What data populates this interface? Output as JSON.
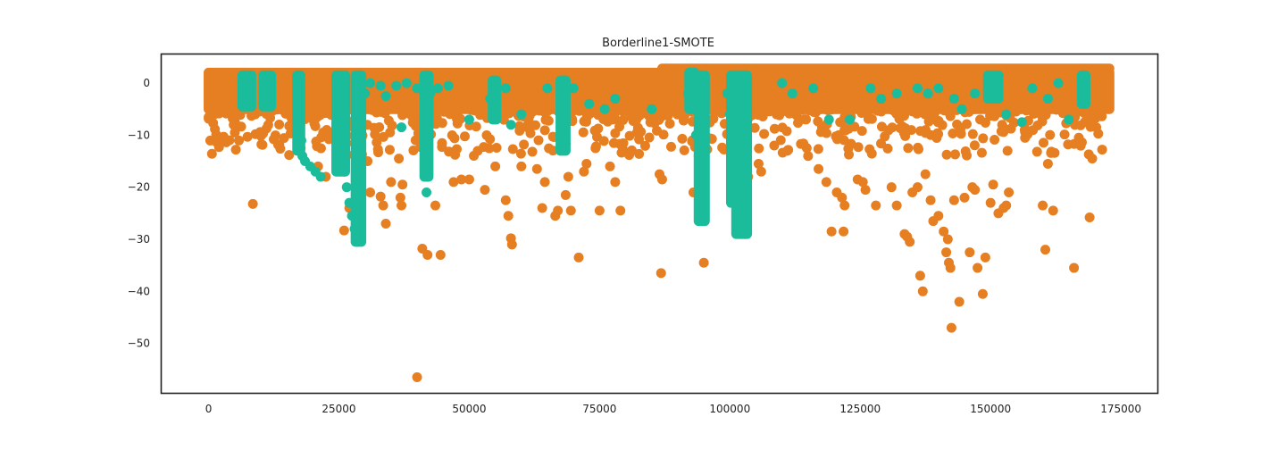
{
  "chart_data": {
    "type": "scatter",
    "title": "Borderline1-SMOTE",
    "xlabel": "",
    "ylabel": "",
    "xlim": [
      -9000,
      182000
    ],
    "ylim": [
      -59.5,
      5.5
    ],
    "x_ticks": [
      0,
      25000,
      50000,
      75000,
      100000,
      125000,
      150000,
      175000
    ],
    "x_tick_labels": [
      "0",
      "25000",
      "50000",
      "75000",
      "100000",
      "125000",
      "150000",
      "175000"
    ],
    "y_ticks": [
      0,
      -10,
      -20,
      -30,
      -40,
      -50
    ],
    "y_tick_labels": [
      "0",
      "−10",
      "−20",
      "−30",
      "−40",
      "−50"
    ],
    "grid": false,
    "legend": "none",
    "colors": {
      "majority": "#e67e22",
      "minority": "#1abc9c",
      "frame": "#222222"
    },
    "series": [
      {
        "color": "#e67e22",
        "band": {
          "x_start": 0,
          "x_end": 172800,
          "y_top": 2,
          "y_bottom": -5
        },
        "points": [
          [
            1500,
            -11.3
          ],
          [
            2000,
            -12.3
          ],
          [
            2500,
            -11
          ],
          [
            8500,
            -23.2
          ],
          [
            9000,
            -9.8
          ],
          [
            10000,
            -9.5
          ],
          [
            12500,
            -10.8
          ],
          [
            21000,
            -16
          ],
          [
            22500,
            -18
          ],
          [
            26000,
            -28.3
          ],
          [
            27000,
            -24
          ],
          [
            30500,
            -15
          ],
          [
            31000,
            -21
          ],
          [
            33000,
            -21.8
          ],
          [
            33500,
            -23.5
          ],
          [
            34000,
            -27
          ],
          [
            35000,
            -19
          ],
          [
            36500,
            -14.5
          ],
          [
            36800,
            -22
          ],
          [
            37000,
            -23.5
          ],
          [
            37200,
            -19.5
          ],
          [
            40000,
            -56.5
          ],
          [
            41000,
            -31.8
          ],
          [
            42000,
            -33
          ],
          [
            43500,
            -23.5
          ],
          [
            44500,
            -33
          ],
          [
            47000,
            -19
          ],
          [
            48500,
            -18.5
          ],
          [
            50000,
            -18.5
          ],
          [
            53000,
            -20.5
          ],
          [
            55000,
            -16
          ],
          [
            57000,
            -22.5
          ],
          [
            57500,
            -25.5
          ],
          [
            58000,
            -29.8
          ],
          [
            58200,
            -31
          ],
          [
            60000,
            -16
          ],
          [
            63000,
            -16.5
          ],
          [
            64000,
            -24
          ],
          [
            64500,
            -19
          ],
          [
            66500,
            -25.5
          ],
          [
            67000,
            -24.5
          ],
          [
            68500,
            -21.5
          ],
          [
            69000,
            -18
          ],
          [
            69500,
            -24.5
          ],
          [
            71000,
            -33.5
          ],
          [
            72000,
            -17
          ],
          [
            72500,
            -15.5
          ],
          [
            75000,
            -24.5
          ],
          [
            77000,
            -16
          ],
          [
            78000,
            -19
          ],
          [
            79000,
            -24.5
          ],
          [
            86500,
            -17.5
          ],
          [
            86800,
            -36.5
          ],
          [
            87000,
            -18.5
          ],
          [
            93000,
            -21
          ],
          [
            95000,
            -34.5
          ],
          [
            103500,
            -18
          ],
          [
            105500,
            -15.5
          ],
          [
            106000,
            -17
          ],
          [
            108500,
            -12
          ],
          [
            111000,
            -13
          ],
          [
            115000,
            -14
          ],
          [
            117000,
            -16.5
          ],
          [
            118500,
            -19
          ],
          [
            119500,
            -28.5
          ],
          [
            120500,
            -21
          ],
          [
            121500,
            -22
          ],
          [
            121800,
            -28.5
          ],
          [
            122000,
            -23.5
          ],
          [
            124500,
            -18.5
          ],
          [
            125500,
            -19
          ],
          [
            126000,
            -20.5
          ],
          [
            128000,
            -23.5
          ],
          [
            131000,
            -20
          ],
          [
            132000,
            -23.5
          ],
          [
            133500,
            -29
          ],
          [
            134000,
            -29.5
          ],
          [
            134500,
            -30.5
          ],
          [
            135000,
            -21
          ],
          [
            136000,
            -20
          ],
          [
            136500,
            -37
          ],
          [
            137000,
            -40
          ],
          [
            137500,
            -17.5
          ],
          [
            138500,
            -22.5
          ],
          [
            139000,
            -26.5
          ],
          [
            140000,
            -25.5
          ],
          [
            141000,
            -28.5
          ],
          [
            141500,
            -32.5
          ],
          [
            141800,
            -30
          ],
          [
            142000,
            -34.5
          ],
          [
            142300,
            -35.5
          ],
          [
            142500,
            -47
          ],
          [
            143000,
            -22.5
          ],
          [
            144000,
            -42
          ],
          [
            145000,
            -22
          ],
          [
            146000,
            -32.5
          ],
          [
            146500,
            -20
          ],
          [
            147000,
            -20.5
          ],
          [
            147500,
            -35.5
          ],
          [
            148500,
            -40.5
          ],
          [
            149000,
            -33.5
          ],
          [
            150000,
            -23
          ],
          [
            150500,
            -19.5
          ],
          [
            151500,
            -25
          ],
          [
            152500,
            -24
          ],
          [
            153000,
            -23.5
          ],
          [
            153500,
            -21
          ],
          [
            160000,
            -23.5
          ],
          [
            160500,
            -32
          ],
          [
            161000,
            -15.5
          ],
          [
            162000,
            -24.5
          ],
          [
            166000,
            -35.5
          ],
          [
            169000,
            -25.8
          ],
          [
            169500,
            -14.5
          ]
        ]
      },
      {
        "color": "#1abc9c",
        "points": [
          [
            7000,
            -1
          ],
          [
            7300,
            -2
          ],
          [
            7600,
            -3.5
          ],
          [
            10500,
            -1
          ],
          [
            12000,
            -4
          ],
          [
            17200,
            -2
          ],
          [
            17400,
            -5
          ],
          [
            17600,
            -8
          ],
          [
            17800,
            -11
          ],
          [
            18000,
            -14
          ],
          [
            18500,
            -15
          ],
          [
            19500,
            -16
          ],
          [
            20500,
            -17
          ],
          [
            21500,
            -18
          ],
          [
            24700,
            -2
          ],
          [
            25000,
            -8
          ],
          [
            25500,
            -15
          ],
          [
            26000,
            -17
          ],
          [
            26500,
            -20
          ],
          [
            27000,
            -23
          ],
          [
            27500,
            -25.5
          ],
          [
            28000,
            -28
          ],
          [
            28500,
            -30.5
          ],
          [
            29000,
            -20
          ],
          [
            29200,
            -10
          ],
          [
            29400,
            -2
          ],
          [
            30000,
            -2
          ],
          [
            31000,
            0
          ],
          [
            33000,
            -0.5
          ],
          [
            34000,
            -2.5
          ],
          [
            36000,
            -0.5
          ],
          [
            37000,
            -8.5
          ],
          [
            38000,
            0
          ],
          [
            40000,
            -1
          ],
          [
            41800,
            -21
          ],
          [
            42500,
            -2
          ],
          [
            44000,
            -1
          ],
          [
            46000,
            -0.5
          ],
          [
            50000,
            -7
          ],
          [
            54000,
            -3
          ],
          [
            55000,
            -4
          ],
          [
            57000,
            -1
          ],
          [
            58000,
            -8
          ],
          [
            60000,
            -6
          ],
          [
            65000,
            -1
          ],
          [
            70000,
            -1
          ],
          [
            73000,
            -4
          ],
          [
            76000,
            -5
          ],
          [
            78000,
            -3
          ],
          [
            85000,
            -5
          ],
          [
            92000,
            -2
          ],
          [
            92500,
            -1
          ],
          [
            93500,
            -10
          ],
          [
            94000,
            -14
          ],
          [
            95000,
            -17
          ],
          [
            99500,
            -2
          ],
          [
            100000,
            -6
          ],
          [
            100500,
            -14
          ],
          [
            101000,
            -20
          ],
          [
            101500,
            -23
          ],
          [
            102000,
            -26
          ],
          [
            102500,
            -28
          ],
          [
            103000,
            -29
          ],
          [
            110000,
            0
          ],
          [
            112000,
            -2
          ],
          [
            116000,
            -1
          ],
          [
            119000,
            -7
          ],
          [
            123000,
            -7
          ],
          [
            127000,
            -1
          ],
          [
            129000,
            -3
          ],
          [
            132000,
            -2
          ],
          [
            136000,
            -1
          ],
          [
            138000,
            -2
          ],
          [
            140000,
            -1
          ],
          [
            143000,
            -3
          ],
          [
            144500,
            -5
          ],
          [
            147000,
            -2
          ],
          [
            150000,
            0
          ],
          [
            153000,
            -6
          ],
          [
            156000,
            -7.5
          ],
          [
            158000,
            -1
          ],
          [
            161000,
            -3
          ],
          [
            163000,
            0
          ],
          [
            165000,
            -7
          ],
          [
            168000,
            -1
          ]
        ],
        "spikes": [
          {
            "x_start": 6500,
            "x_end": 8200,
            "y_top": 1.5,
            "y_bottom": -4.5
          },
          {
            "x_start": 10500,
            "x_end": 12000,
            "y_top": 1.5,
            "y_bottom": -4.5
          },
          {
            "x_start": 17000,
            "x_end": 17600,
            "y_top": 1.5,
            "y_bottom": -13
          },
          {
            "x_start": 24500,
            "x_end": 26200,
            "y_top": 1.5,
            "y_bottom": -17
          },
          {
            "x_start": 28200,
            "x_end": 29300,
            "y_top": 1.5,
            "y_bottom": -30.5
          },
          {
            "x_start": 41400,
            "x_end": 42200,
            "y_top": 1.5,
            "y_bottom": -18
          },
          {
            "x_start": 54500,
            "x_end": 55200,
            "y_top": 0.5,
            "y_bottom": -7
          },
          {
            "x_start": 67500,
            "x_end": 68500,
            "y_top": 0.5,
            "y_bottom": -13
          },
          {
            "x_start": 92200,
            "x_end": 93200,
            "y_top": 2,
            "y_bottom": -5
          },
          {
            "x_start": 94000,
            "x_end": 95200,
            "y_top": 1.5,
            "y_bottom": -26.5
          },
          {
            "x_start": 100200,
            "x_end": 101200,
            "y_top": 1.5,
            "y_bottom": -23
          },
          {
            "x_start": 101200,
            "x_end": 103300,
            "y_top": 1.5,
            "y_bottom": -29
          },
          {
            "x_start": 149500,
            "x_end": 151500,
            "y_top": 1.5,
            "y_bottom": -3
          },
          {
            "x_start": 167500,
            "x_end": 168200,
            "y_top": 1.5,
            "y_bottom": -4
          }
        ]
      }
    ]
  }
}
